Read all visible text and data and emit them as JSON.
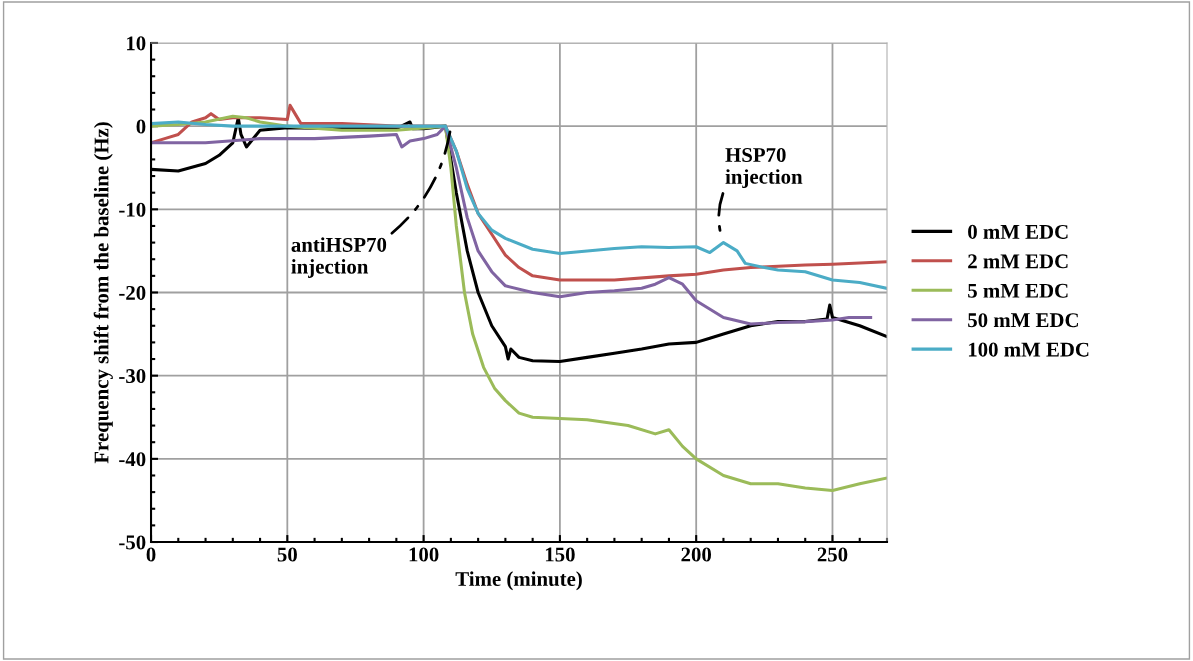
{
  "chart_data": {
    "type": "line",
    "xlabel": "Time (minute)",
    "ylabel": "Frequency shift from the baseline (Hz)",
    "xlim": [
      0,
      270
    ],
    "xticks": [
      0,
      50,
      100,
      150,
      200,
      250
    ],
    "ylim": [
      -50,
      10
    ],
    "yticks": [
      -50,
      -40,
      -30,
      -20,
      -10,
      0,
      10
    ],
    "grid": true,
    "legend": "right",
    "marker": "none",
    "line_style": "solid",
    "annotations": [
      {
        "text": "antiHSP70\ninjection",
        "x": 110,
        "y": 0
      },
      {
        "text": "HSP70\ninjection",
        "x": 210,
        "y": -14
      }
    ],
    "series": [
      {
        "name": "0 mM EDC",
        "color": "#000000",
        "x": [
          0,
          10,
          20,
          25,
          30,
          32,
          33,
          35,
          40,
          50,
          70,
          90,
          95,
          96,
          100,
          108,
          112,
          116,
          120,
          125,
          130,
          131,
          132,
          135,
          140,
          150,
          160,
          170,
          180,
          190,
          200,
          205,
          210,
          220,
          230,
          240,
          248,
          249,
          250,
          260,
          270
        ],
        "values": [
          -5.2,
          -5.4,
          -4.5,
          -3.5,
          -2,
          1,
          -1,
          -2.5,
          -0.5,
          -0.2,
          -0.3,
          -0.3,
          0.5,
          -0.3,
          -0.3,
          0,
          -8,
          -15,
          -20,
          -24,
          -26.5,
          -28,
          -26.8,
          -27.8,
          -28.2,
          -28.3,
          -27.8,
          -27.3,
          -26.8,
          -26.2,
          -26,
          -25.5,
          -25,
          -24,
          -23.5,
          -23.5,
          -23.2,
          -21.5,
          -23,
          -24,
          -25.3
        ]
      },
      {
        "name": "2 mM EDC",
        "color": "#c0504d",
        "x": [
          0,
          5,
          10,
          15,
          20,
          22,
          25,
          30,
          40,
          50,
          51,
          55,
          70,
          90,
          108,
          112,
          116,
          120,
          125,
          130,
          135,
          140,
          150,
          170,
          190,
          200,
          210,
          220,
          240,
          250,
          270
        ],
        "values": [
          -2,
          -1.5,
          -1,
          0.5,
          1,
          1.5,
          0.8,
          1,
          1,
          0.8,
          2.5,
          0.3,
          0.3,
          0,
          0,
          -3,
          -7,
          -10.5,
          -13,
          -15.5,
          -17,
          -18,
          -18.5,
          -18.5,
          -18,
          -17.8,
          -17.3,
          -17,
          -16.7,
          -16.6,
          -16.3
        ]
      },
      {
        "name": "5 mM EDC",
        "color": "#9bbb59",
        "x": [
          0,
          10,
          20,
          30,
          35,
          40,
          50,
          70,
          90,
          108,
          110,
          112,
          115,
          118,
          122,
          126,
          130,
          135,
          140,
          160,
          175,
          185,
          190,
          195,
          200,
          210,
          220,
          230,
          240,
          250,
          260,
          270
        ],
        "values": [
          0,
          0.2,
          0.5,
          1.2,
          1,
          0.5,
          0,
          -0.5,
          -0.5,
          0,
          -5,
          -12,
          -20,
          -25,
          -29,
          -31.5,
          -33,
          -34.5,
          -35,
          -35.3,
          -36,
          -37,
          -36.5,
          -38.5,
          -40,
          -42,
          -43,
          -43,
          -43.5,
          -43.8,
          -43,
          -42.3
        ]
      },
      {
        "name": "50 mM EDC",
        "color": "#8064a2",
        "x": [
          0,
          20,
          40,
          60,
          80,
          90,
          92,
          95,
          100,
          105,
          108,
          112,
          116,
          120,
          125,
          130,
          140,
          150,
          160,
          170,
          180,
          185,
          190,
          195,
          200,
          210,
          220,
          230,
          240,
          250,
          256,
          264
        ],
        "values": [
          -2,
          -2,
          -1.5,
          -1.5,
          -1.2,
          -1,
          -2.5,
          -1.8,
          -1.5,
          -1,
          0,
          -5,
          -11,
          -15,
          -17.5,
          -19.2,
          -20,
          -20.5,
          -20,
          -19.8,
          -19.5,
          -19,
          -18.2,
          -19,
          -21,
          -23,
          -23.8,
          -23.6,
          -23.5,
          -23.3,
          -23,
          -23
        ]
      },
      {
        "name": "100 mM EDC",
        "color": "#4bacc6",
        "x": [
          0,
          10,
          20,
          30,
          50,
          70,
          100,
          108,
          112,
          116,
          120,
          125,
          130,
          140,
          150,
          160,
          170,
          180,
          190,
          200,
          205,
          210,
          215,
          218,
          225,
          230,
          240,
          250,
          260,
          270
        ],
        "values": [
          0.3,
          0.5,
          0.2,
          0,
          0,
          0,
          0,
          0,
          -3,
          -7.5,
          -10.5,
          -12.5,
          -13.5,
          -14.8,
          -15.3,
          -15,
          -14.7,
          -14.5,
          -14.6,
          -14.5,
          -15.2,
          -14,
          -15,
          -16.5,
          -17,
          -17.3,
          -17.5,
          -18.5,
          -18.8,
          -19.5
        ]
      }
    ]
  }
}
